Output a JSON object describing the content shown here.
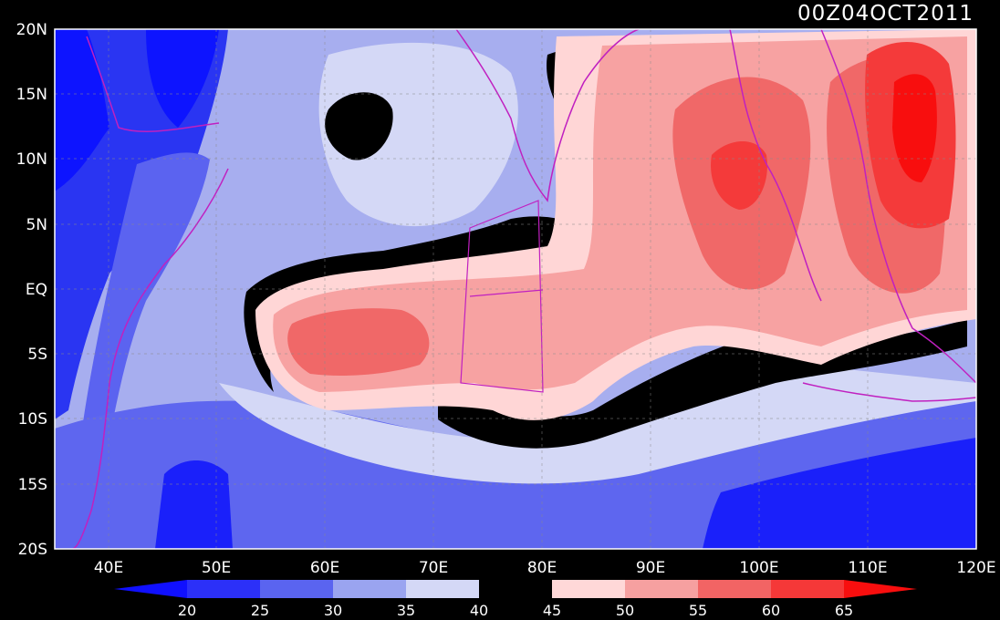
{
  "title": "00Z04OCT2011",
  "y_ticks": [
    "20N",
    "15N",
    "10N",
    "5N",
    "EQ",
    "5S",
    "10S",
    "15S",
    "20S"
  ],
  "x_ticks": [
    "40E",
    "50E",
    "60E",
    "70E",
    "80E",
    "90E",
    "100E",
    "110E",
    "120E"
  ],
  "colorbar": {
    "labels": [
      "20",
      "25",
      "30",
      "35",
      "40",
      "45",
      "50",
      "55",
      "60",
      "65"
    ],
    "colors": [
      "#1010ff",
      "#2c30f8",
      "#5a64f0",
      "#9aa4f0",
      "#d4d8f6",
      "#000000",
      "#ffd8d8",
      "#f6a0a0",
      "#f26464",
      "#f53838",
      "#f80e0e"
    ]
  },
  "colors": {
    "background": "#000000",
    "coastline": "#c020c0",
    "grid": "#8a8a8a",
    "frame": "#ffffff"
  }
}
